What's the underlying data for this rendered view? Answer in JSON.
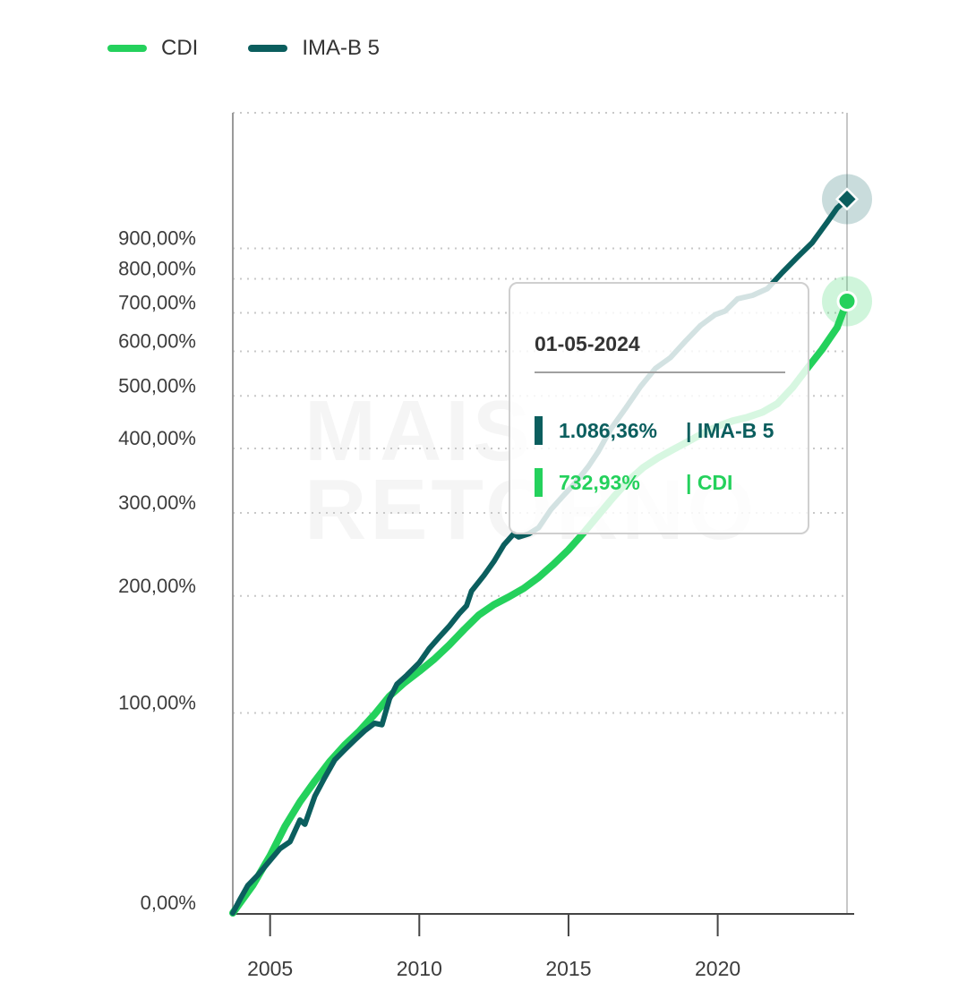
{
  "colors": {
    "cdi": "#24d15c",
    "ima": "#0b5e5e",
    "grid": "#c8c8c8",
    "axis": "#9a9a9a",
    "text": "#3c3c3c"
  },
  "legend": [
    {
      "label": "CDI",
      "color": "#24d15c"
    },
    {
      "label": "IMA-B 5",
      "color": "#0b5e5e"
    }
  ],
  "watermark": {
    "line1": "MAIS",
    "line2": "RETORNO"
  },
  "tooltip": {
    "date": "01-05-2024",
    "rows": [
      {
        "value": "1.086,36%",
        "name": "| IMA-B 5",
        "color": "#0b5e5e"
      },
      {
        "value": "732,93%",
        "name": "| CDI",
        "color": "#24d15c"
      }
    ]
  },
  "chart_data": {
    "type": "line",
    "title": "",
    "xlabel": "",
    "ylabel": "",
    "y_scale": "log(1+y)",
    "xlim": [
      "2003-10-01",
      "2024-05-01"
    ],
    "ylim": [
      0,
      1500
    ],
    "xticks": [
      {
        "x": "2005-01-01",
        "label": "2005"
      },
      {
        "x": "2010-01-01",
        "label": "2010"
      },
      {
        "x": "2015-01-01",
        "label": "2015"
      },
      {
        "x": "2020-01-01",
        "label": "2020"
      }
    ],
    "yticks": [
      {
        "y": 0,
        "label": "0,00%"
      },
      {
        "y": 100,
        "label": "100,00%"
      },
      {
        "y": 200,
        "label": "200,00%"
      },
      {
        "y": 300,
        "label": "300,00%"
      },
      {
        "y": 400,
        "label": "400,00%"
      },
      {
        "y": 500,
        "label": "500,00%"
      },
      {
        "y": 600,
        "label": "600,00%"
      },
      {
        "y": 700,
        "label": "700,00%"
      },
      {
        "y": 800,
        "label": "800,00%"
      },
      {
        "y": 900,
        "label": "900,00%"
      }
    ],
    "grid": true,
    "legend_position": "top-left",
    "series": [
      {
        "name": "CDI",
        "color": "#24d15c",
        "points": [
          [
            "2003-10-01",
            0
          ],
          [
            "2004-06-01",
            10
          ],
          [
            "2005-01-01",
            22
          ],
          [
            "2005-07-01",
            35
          ],
          [
            "2006-01-01",
            47
          ],
          [
            "2006-07-01",
            58
          ],
          [
            "2007-01-01",
            69
          ],
          [
            "2007-07-01",
            79
          ],
          [
            "2008-01-01",
            88
          ],
          [
            "2008-07-01",
            99
          ],
          [
            "2009-01-01",
            112
          ],
          [
            "2009-07-01",
            122
          ],
          [
            "2010-01-01",
            131
          ],
          [
            "2010-07-01",
            141
          ],
          [
            "2011-01-01",
            153
          ],
          [
            "2011-07-01",
            167
          ],
          [
            "2012-01-01",
            181
          ],
          [
            "2012-07-01",
            191
          ],
          [
            "2013-01-01",
            199
          ],
          [
            "2013-07-01",
            208
          ],
          [
            "2014-01-01",
            220
          ],
          [
            "2014-07-01",
            235
          ],
          [
            "2015-01-01",
            252
          ],
          [
            "2015-07-01",
            273
          ],
          [
            "2016-01-01",
            297
          ],
          [
            "2016-07-01",
            322
          ],
          [
            "2017-01-01",
            347
          ],
          [
            "2017-07-01",
            368
          ],
          [
            "2018-01-01",
            384
          ],
          [
            "2018-07-01",
            398
          ],
          [
            "2019-01-01",
            412
          ],
          [
            "2019-07-01",
            427
          ],
          [
            "2020-01-01",
            440
          ],
          [
            "2020-07-01",
            450
          ],
          [
            "2021-01-01",
            457
          ],
          [
            "2021-07-01",
            467
          ],
          [
            "2022-01-01",
            484
          ],
          [
            "2022-07-01",
            517
          ],
          [
            "2023-01-01",
            560
          ],
          [
            "2023-07-01",
            605
          ],
          [
            "2024-01-01",
            660
          ],
          [
            "2024-05-01",
            732.93
          ]
        ]
      },
      {
        "name": "IMA-B 5",
        "color": "#0b5e5e",
        "points": [
          [
            "2003-10-01",
            0
          ],
          [
            "2004-01-01",
            5
          ],
          [
            "2004-04-01",
            10
          ],
          [
            "2004-08-01",
            14
          ],
          [
            "2005-01-01",
            20
          ],
          [
            "2005-05-01",
            25
          ],
          [
            "2005-09-01",
            28
          ],
          [
            "2006-01-01",
            38
          ],
          [
            "2006-03-01",
            36
          ],
          [
            "2006-07-01",
            50
          ],
          [
            "2006-11-01",
            60
          ],
          [
            "2007-03-01",
            70
          ],
          [
            "2007-07-01",
            76
          ],
          [
            "2007-11-01",
            82
          ],
          [
            "2008-03-01",
            88
          ],
          [
            "2008-07-01",
            93
          ],
          [
            "2008-10-01",
            92
          ],
          [
            "2009-01-01",
            110
          ],
          [
            "2009-04-01",
            121
          ],
          [
            "2009-08-01",
            128
          ],
          [
            "2010-01-01",
            138
          ],
          [
            "2010-05-01",
            150
          ],
          [
            "2010-09-01",
            160
          ],
          [
            "2011-01-01",
            170
          ],
          [
            "2011-05-01",
            182
          ],
          [
            "2011-08-01",
            190
          ],
          [
            "2011-10-01",
            205
          ],
          [
            "2012-03-01",
            222
          ],
          [
            "2012-07-01",
            238
          ],
          [
            "2012-11-01",
            258
          ],
          [
            "2013-03-01",
            272
          ],
          [
            "2013-05-01",
            268
          ],
          [
            "2013-09-01",
            272
          ],
          [
            "2014-01-01",
            280
          ],
          [
            "2014-06-01",
            305
          ],
          [
            "2014-11-01",
            325
          ],
          [
            "2015-04-01",
            345
          ],
          [
            "2015-09-01",
            370
          ],
          [
            "2016-01-01",
            395
          ],
          [
            "2016-06-01",
            435
          ],
          [
            "2016-12-01",
            475
          ],
          [
            "2017-06-01",
            520
          ],
          [
            "2017-12-01",
            560
          ],
          [
            "2018-06-01",
            585
          ],
          [
            "2018-12-01",
            625
          ],
          [
            "2019-06-01",
            665
          ],
          [
            "2019-12-01",
            695
          ],
          [
            "2020-04-01",
            705
          ],
          [
            "2020-09-01",
            740
          ],
          [
            "2021-03-01",
            750
          ],
          [
            "2021-09-01",
            770
          ],
          [
            "2022-03-01",
            820
          ],
          [
            "2022-09-01",
            870
          ],
          [
            "2023-03-01",
            920
          ],
          [
            "2023-09-01",
            995
          ],
          [
            "2024-01-01",
            1050
          ],
          [
            "2024-05-01",
            1086.36
          ]
        ]
      }
    ],
    "highlight_x": "2024-05-01"
  }
}
